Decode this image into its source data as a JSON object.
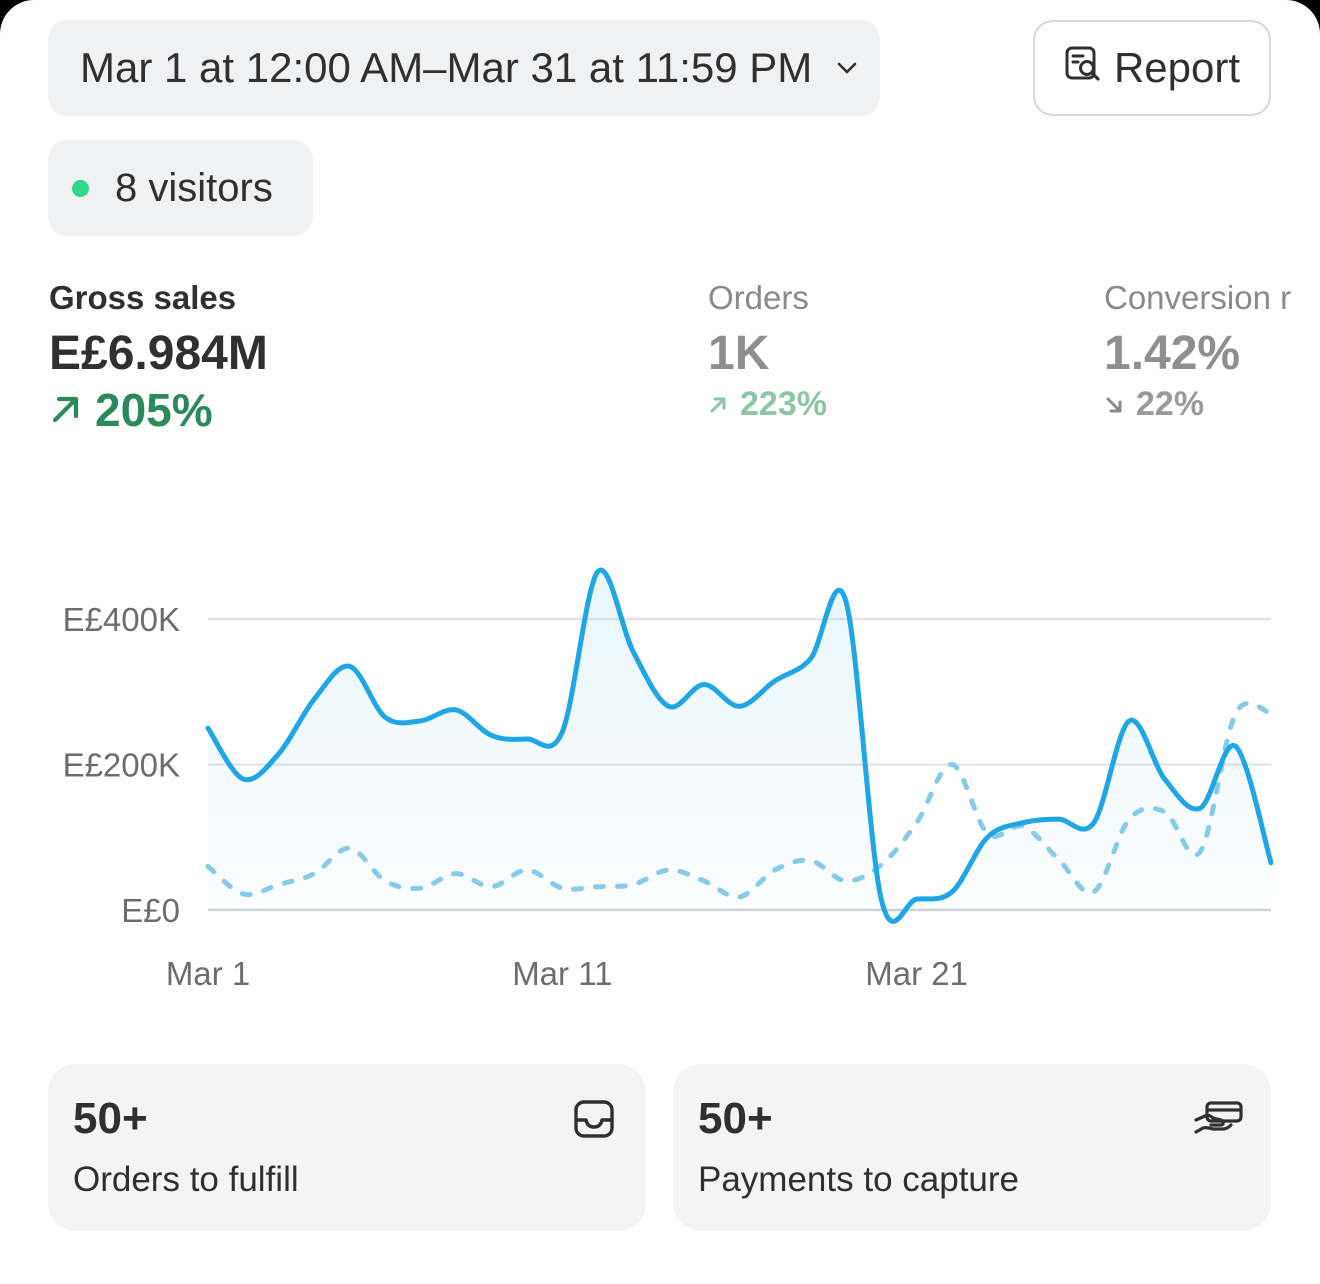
{
  "header": {
    "date_range": "Mar 1 at 12:00 AM–Mar 31 at 11:59 PM",
    "report_label": "Report"
  },
  "live": {
    "visitors_label": "8 visitors",
    "status_color": "#2fd88a"
  },
  "metrics": [
    {
      "label": "Gross sales",
      "value": "E£6.984M",
      "change": "205%",
      "direction": "up",
      "active": true
    },
    {
      "label": "Orders",
      "value": "1K",
      "change": "223%",
      "direction": "up",
      "active": false
    },
    {
      "label": "Conversion r",
      "value": "1.42%",
      "change": "22%",
      "direction": "down",
      "active": false
    }
  ],
  "chart_data": {
    "type": "line",
    "y_ticks": [
      "E£400K",
      "E£200K",
      "E£0"
    ],
    "x_ticks": [
      "Mar 1",
      "Mar 11",
      "Mar 21"
    ],
    "ylim": [
      0,
      400000
    ],
    "grid": true,
    "x": [
      1,
      2,
      3,
      4,
      5,
      6,
      7,
      8,
      9,
      10,
      11,
      12,
      13,
      14,
      15,
      16,
      17,
      18,
      19,
      20,
      21,
      22,
      23,
      24,
      25,
      26,
      27,
      28,
      29,
      30,
      31
    ],
    "series": [
      {
        "style": "solid",
        "color": "#1fa6e6",
        "values": [
          250000,
          180000,
          215000,
          290000,
          335000,
          265000,
          260000,
          275000,
          240000,
          235000,
          245000,
          465000,
          355000,
          280000,
          310000,
          280000,
          315000,
          345000,
          425000,
          15000,
          15000,
          25000,
          100000,
          120000,
          125000,
          120000,
          260000,
          180000,
          140000,
          225000,
          65000
        ]
      },
      {
        "style": "dashed",
        "color": "#86cbe9",
        "values": [
          60000,
          22000,
          35000,
          50000,
          85000,
          40000,
          30000,
          50000,
          32000,
          55000,
          30000,
          32000,
          35000,
          55000,
          40000,
          18000,
          55000,
          68000,
          40000,
          62000,
          120000,
          200000,
          105000,
          115000,
          70000,
          25000,
          125000,
          135000,
          80000,
          270000,
          270000
        ]
      }
    ]
  },
  "cards": [
    {
      "count": "50+",
      "label": "Orders to fulfill",
      "icon": "inbox-icon"
    },
    {
      "count": "50+",
      "label": "Payments to capture",
      "icon": "hand-payment-icon"
    }
  ]
}
